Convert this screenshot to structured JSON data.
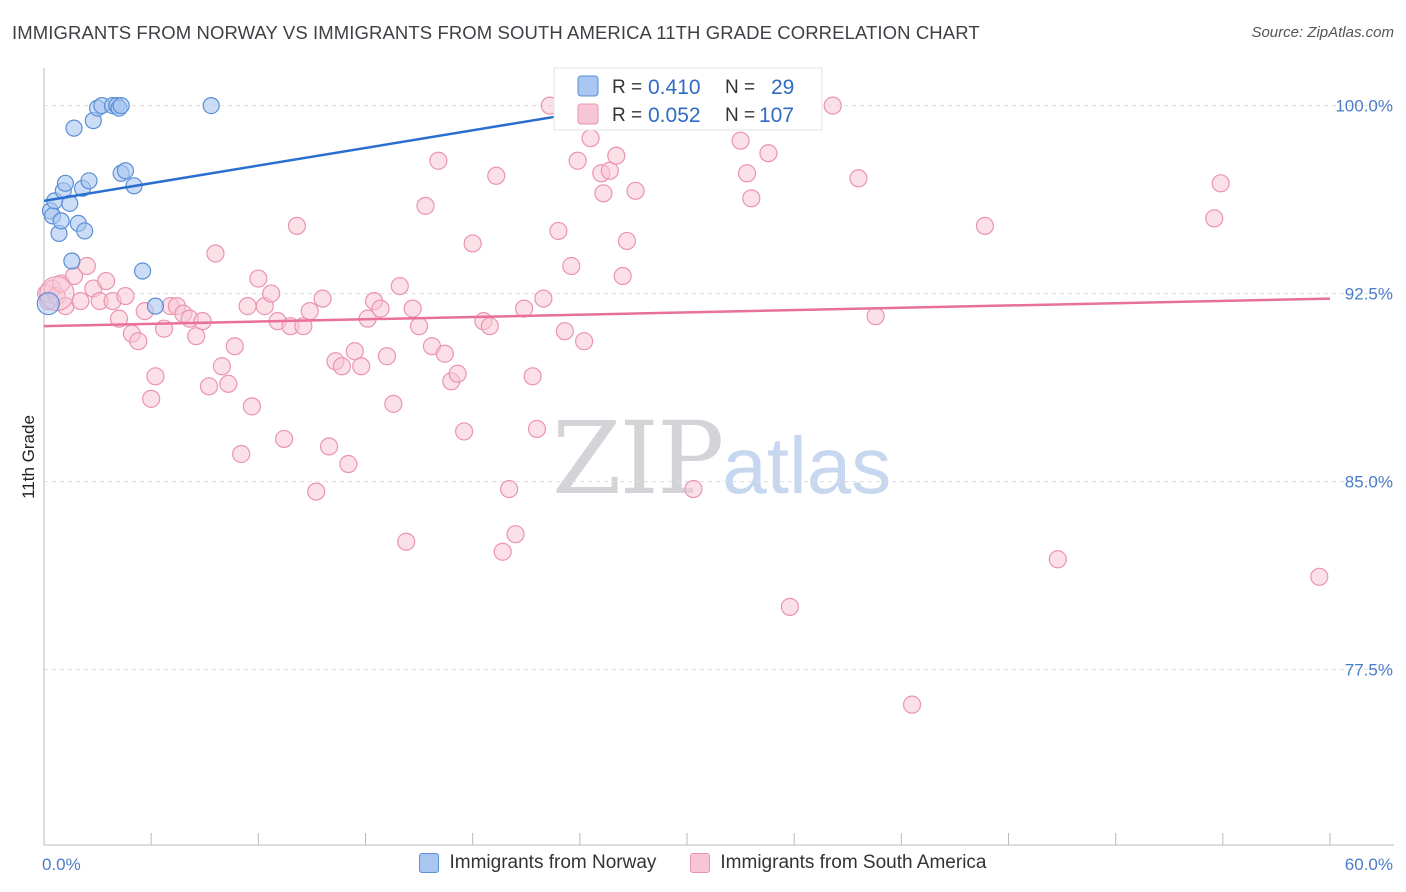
{
  "title": "IMMIGRANTS FROM NORWAY VS IMMIGRANTS FROM SOUTH AMERICA 11TH GRADE CORRELATION CHART",
  "source": "Source: ZipAtlas.com",
  "watermark": {
    "zip": "ZIP",
    "atlas": "atlas"
  },
  "colors": {
    "norway_fill": "#a9c6f0",
    "norway_stroke": "#5b8fd6",
    "norway_line": "#2a6fd0",
    "sa_fill": "#f7c6d5",
    "sa_stroke": "#eb94b0",
    "sa_line": "#e8709a",
    "tick_text": "#4a7cc9",
    "grid": "#dedede"
  },
  "legend": {
    "norway": {
      "r_label": "R =",
      "r_value": "0.410",
      "n_label": "N =",
      "n_value": "29"
    },
    "sa": {
      "r_label": "R =",
      "r_value": "0.052",
      "n_label": "N =",
      "n_value": "107"
    }
  },
  "chart_data": {
    "type": "scatter",
    "title": "IMMIGRANTS FROM NORWAY VS IMMIGRANTS FROM SOUTH AMERICA 11TH GRADE CORRELATION CHART",
    "xlabel": "",
    "ylabel": "11th Grade",
    "xlim": [
      0,
      60
    ],
    "ylim": [
      70.5,
      101.5
    ],
    "x_tick_labels": [
      {
        "value": 0,
        "label": "0.0%"
      },
      {
        "value": 60,
        "label": "60.0%"
      }
    ],
    "y_ticks": [
      {
        "value": 100,
        "label": "100.0%"
      },
      {
        "value": 92.5,
        "label": "92.5%"
      },
      {
        "value": 85,
        "label": "85.0%"
      },
      {
        "value": 77.5,
        "label": "77.5%"
      }
    ],
    "grid": true,
    "legend_position": "top-center",
    "series": [
      {
        "name": "Immigrants from Norway",
        "r": 0.41,
        "n": 29,
        "trend": {
          "x": [
            0.0,
            27.0
          ],
          "y": [
            96.2,
            100.0
          ]
        },
        "points": [
          [
            0.3,
            95.8
          ],
          [
            0.4,
            95.6
          ],
          [
            0.5,
            96.2
          ],
          [
            0.7,
            94.9
          ],
          [
            0.8,
            95.4
          ],
          [
            0.9,
            96.6
          ],
          [
            1.0,
            96.9
          ],
          [
            1.2,
            96.1
          ],
          [
            1.3,
            93.8
          ],
          [
            1.4,
            99.1
          ],
          [
            1.6,
            95.3
          ],
          [
            1.8,
            96.7
          ],
          [
            1.9,
            95.0
          ],
          [
            2.1,
            97.0
          ],
          [
            2.3,
            99.4
          ],
          [
            2.5,
            99.9
          ],
          [
            2.7,
            100.0
          ],
          [
            3.2,
            100.0
          ],
          [
            3.4,
            100.0
          ],
          [
            3.5,
            99.9
          ],
          [
            3.6,
            100.0
          ],
          [
            3.6,
            97.3
          ],
          [
            3.8,
            97.4
          ],
          [
            4.2,
            96.8
          ],
          [
            4.6,
            93.4
          ],
          [
            5.2,
            92.0
          ],
          [
            7.8,
            100.0
          ],
          [
            25.8,
            100.0
          ],
          [
            33.0,
            100.0
          ]
        ]
      },
      {
        "name": "Immigrants from South America",
        "r": 0.052,
        "n": 107,
        "trend": {
          "x": [
            0.0,
            60.0
          ],
          "y": [
            91.2,
            92.3
          ]
        },
        "points": [
          [
            0.1,
            92.5
          ],
          [
            0.2,
            92.2
          ],
          [
            0.4,
            92.7
          ],
          [
            0.6,
            92.4
          ],
          [
            0.8,
            92.9
          ],
          [
            1.0,
            92.0
          ],
          [
            1.4,
            93.2
          ],
          [
            1.7,
            92.2
          ],
          [
            2.0,
            93.6
          ],
          [
            2.3,
            92.7
          ],
          [
            2.6,
            92.2
          ],
          [
            2.9,
            93.0
          ],
          [
            3.2,
            92.2
          ],
          [
            3.5,
            91.5
          ],
          [
            3.8,
            92.4
          ],
          [
            4.1,
            90.9
          ],
          [
            4.4,
            90.6
          ],
          [
            4.7,
            91.8
          ],
          [
            5.0,
            88.3
          ],
          [
            5.2,
            89.2
          ],
          [
            5.6,
            91.1
          ],
          [
            5.9,
            92.0
          ],
          [
            6.2,
            92.0
          ],
          [
            6.5,
            91.7
          ],
          [
            6.8,
            91.5
          ],
          [
            7.1,
            90.8
          ],
          [
            7.4,
            91.4
          ],
          [
            7.7,
            88.8
          ],
          [
            8.0,
            94.1
          ],
          [
            8.3,
            89.6
          ],
          [
            8.6,
            88.9
          ],
          [
            8.9,
            90.4
          ],
          [
            9.2,
            86.1
          ],
          [
            9.5,
            92.0
          ],
          [
            9.7,
            88.0
          ],
          [
            10.0,
            93.1
          ],
          [
            10.3,
            92.0
          ],
          [
            10.6,
            92.5
          ],
          [
            10.9,
            91.4
          ],
          [
            11.2,
            86.7
          ],
          [
            11.5,
            91.2
          ],
          [
            11.8,
            95.2
          ],
          [
            12.1,
            91.2
          ],
          [
            12.4,
            91.8
          ],
          [
            12.7,
            84.6
          ],
          [
            13.0,
            92.3
          ],
          [
            13.3,
            86.4
          ],
          [
            13.6,
            89.8
          ],
          [
            13.9,
            89.6
          ],
          [
            14.2,
            85.7
          ],
          [
            14.5,
            90.2
          ],
          [
            14.8,
            89.6
          ],
          [
            15.1,
            91.5
          ],
          [
            15.4,
            92.2
          ],
          [
            15.7,
            91.9
          ],
          [
            16.0,
            90.0
          ],
          [
            16.3,
            88.1
          ],
          [
            16.6,
            92.8
          ],
          [
            16.9,
            82.6
          ],
          [
            17.2,
            91.9
          ],
          [
            17.5,
            91.2
          ],
          [
            17.8,
            96.0
          ],
          [
            18.1,
            90.4
          ],
          [
            18.4,
            97.8
          ],
          [
            18.7,
            90.1
          ],
          [
            19.0,
            89.0
          ],
          [
            19.3,
            89.3
          ],
          [
            19.6,
            87.0
          ],
          [
            20.0,
            94.5
          ],
          [
            20.5,
            91.4
          ],
          [
            20.8,
            91.2
          ],
          [
            21.1,
            97.2
          ],
          [
            21.4,
            82.2
          ],
          [
            21.7,
            84.7
          ],
          [
            22.0,
            82.9
          ],
          [
            22.4,
            91.9
          ],
          [
            22.8,
            89.2
          ],
          [
            23.0,
            87.1
          ],
          [
            23.3,
            92.3
          ],
          [
            23.6,
            100.0
          ],
          [
            24.0,
            95.0
          ],
          [
            24.3,
            91.0
          ],
          [
            24.6,
            93.6
          ],
          [
            24.9,
            97.8
          ],
          [
            25.2,
            90.6
          ],
          [
            25.5,
            98.7
          ],
          [
            26.0,
            97.3
          ],
          [
            26.1,
            96.5
          ],
          [
            26.4,
            97.4
          ],
          [
            26.7,
            98.0
          ],
          [
            27.0,
            93.2
          ],
          [
            27.2,
            94.6
          ],
          [
            27.6,
            96.6
          ],
          [
            30.3,
            84.7
          ],
          [
            32.5,
            98.6
          ],
          [
            32.8,
            97.3
          ],
          [
            33.0,
            96.3
          ],
          [
            33.5,
            100.0
          ],
          [
            33.8,
            98.1
          ],
          [
            34.8,
            80.0
          ],
          [
            36.8,
            100.0
          ],
          [
            38.0,
            97.1
          ],
          [
            38.8,
            91.6
          ],
          [
            40.5,
            76.1
          ],
          [
            43.9,
            95.2
          ],
          [
            47.3,
            81.9
          ],
          [
            54.6,
            95.5
          ],
          [
            54.9,
            96.9
          ],
          [
            59.5,
            81.2
          ]
        ]
      }
    ]
  }
}
